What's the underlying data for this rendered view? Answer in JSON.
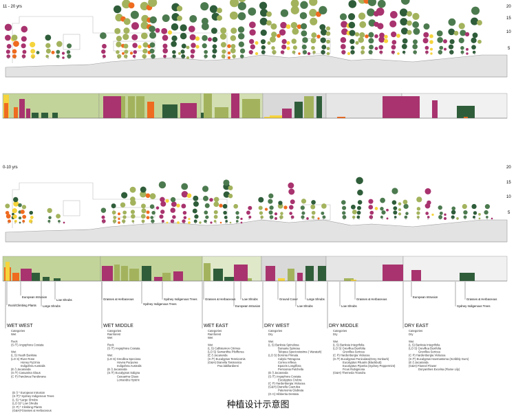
{
  "panels": [
    {
      "label": "11 - 20 yrs",
      "scale": [
        "20",
        "15",
        "10",
        "5"
      ]
    },
    {
      "label": "0-10 yrs",
      "scale": [
        "20",
        "15",
        "10",
        "5"
      ]
    }
  ],
  "zones": [
    {
      "name": "WET WEST",
      "lines": [
        "Categories",
        "Wet",
        "",
        "Rock",
        "(S /T) Angophora Costata",
        "",
        "Wet",
        "(L S) Heath Banksia",
        "(LO S) River Rose",
        "Honey Pyzznia",
        "Indigofera Australis",
        "(E /) Jacaranda",
        "(S /T) Casuarina Glaus",
        "(C P) Pandorea Pandorana"
      ]
    },
    {
      "name": "WET MIDDLE",
      "lines": [
        "Categories",
        "Rainforest",
        "Wet",
        "",
        "Rock",
        "(S /T) Angophora Costata",
        "",
        "Wet",
        "(LO S) Grevillea Speciosa",
        "Hovea Purpurea",
        "Indigofera Australis",
        "(E /) Jacaranda",
        "(S /T) Eucalyptus Saligna",
        "Casuarina Glaus",
        "Lomandra Hystrix"
      ]
    },
    {
      "name": "WET EAST",
      "lines": [
        "Categories",
        "Rainforest",
        "Wet",
        "",
        "Wet",
        "(L S) Callistemon Citrinus",
        "(LO S) Samanthia Pfeifferea",
        "(E /) Jacaranda",
        "(S /T) Eucalyptus Tereticornis",
        "(G&H) Dianella Tasmanica",
        "Poa labillardierei"
      ]
    },
    {
      "name": "DRY WEST",
      "lines": [
        "Categories",
        "Dry",
        "",
        "Wet",
        "(L S) Banksia Spinulosa",
        "Bursaria Spinosa",
        "Telopea Speciosissima ( Waratah)",
        "(LO S) Boronia Pinnata",
        "Calytix Tetragona",
        "Correa reflexa",
        "Epacris Longiflora",
        "Persoonia Pulchella",
        "(E /) Jacaranda",
        "(S /T) Angophora Costata",
        "Eucalyptus Crebra",
        "(C P) Hardenbergia Violacea",
        "(G&H) Dianella Caerulea",
        "Patersonia Glabrata",
        "(G C) Hibbertia Dentata"
      ]
    },
    {
      "name": "DRY MIDDLE",
      "lines": [
        "Categories",
        "Dry",
        "",
        "Wet",
        "(L S) Banksia Integrifolia",
        "(LO S) Grevillea Buxifolia",
        "Grevillea Sericea",
        "(C P) Hardenbergia Violacea",
        "(S /T) Eucalyptus Paniculata(Grey Ironbark)",
        "Eucalyptus Piluaris (Blackbutt)",
        "Eucalyptus Piperita (Sydney Peppermint)",
        "Ficus Rubiginosa",
        "(G&H) Themeda Triandra"
      ]
    },
    {
      "name": "DRY EAST",
      "lines": [
        "Categories",
        "Dry",
        "",
        "Wet",
        "(L S) Banksia Integrifolia",
        "(LO S) Grevillea Buxifolia",
        "Grevillea Sericea",
        "(C P) Hardenbergia Violacea",
        "(S /T) Eucalyptus Haemastoma (Scribbly Gum)",
        "(E /) Jacaranda",
        "(G&H) Flannel Flower",
        "Doryanthes Excelsa (Flame Lily)"
      ]
    }
  ],
  "legend": [
    "(E /) * European Intrusion",
    "(S /T)* Sydney Indigenous Trees",
    "(L S) *Large Shrubs",
    "(LO S)* Low Shrubs",
    "(C P) * Climbing Plants",
    "(G&H)*Grasses & Herbaceous"
  ],
  "callouts": [
    {
      "text": "Rock/Climbing Plants"
    },
    {
      "text": "European Intrusion"
    },
    {
      "text": "Low Shrubs"
    },
    {
      "text": "Large Shrubs"
    },
    {
      "text": "Grasses & Herbaceous"
    },
    {
      "text": "Sydney Indigenous Trees"
    },
    {
      "text": "Sydney Indigenous Trees"
    },
    {
      "text": "Grasses & Herbaceous"
    },
    {
      "text": "Low Shrubs"
    },
    {
      "text": "European Intrusion"
    },
    {
      "text": "Ground Cover"
    },
    {
      "text": "Large Shrubs"
    },
    {
      "text": "Low Shrubs"
    },
    {
      "text": "Low Shrubs"
    },
    {
      "text": "Grasses & Herbaceous"
    },
    {
      "text": "European Intrusion"
    },
    {
      "text": "Grasses & Herbaceous"
    },
    {
      "text": "Sydney Indigenous Trees"
    }
  ],
  "title": "种植设计示意图",
  "colors": {
    "dark_green": "#2f5d3a",
    "mid_green": "#4c7a4f",
    "light_green": "#a3b35d",
    "magenta": "#a8336e",
    "orange": "#ef6b1f",
    "yellow": "#f5d43c",
    "zone_green": "#c3d49a",
    "zone_grey": "#d9d9d9"
  }
}
